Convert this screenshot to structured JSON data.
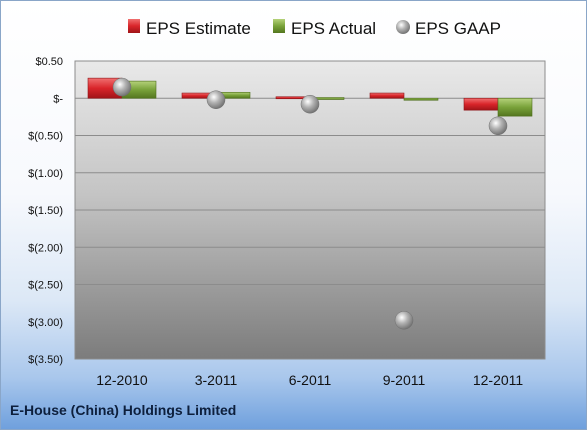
{
  "company": "E-House (China) Holdings Limited",
  "colors": {
    "estimate": "#d9252a",
    "actual": "#79a23a",
    "gaap": "#a6a6a6"
  },
  "legend": {
    "estimate": "EPS Estimate",
    "actual": "EPS Actual",
    "gaap": "EPS GAAP"
  },
  "chart_data": {
    "type": "bar",
    "categories": [
      "12-2010",
      "3-2011",
      "6-2011",
      "9-2011",
      "12-2011"
    ],
    "series": [
      {
        "name": "EPS Estimate",
        "type": "bar",
        "values": [
          0.27,
          0.07,
          0.02,
          0.07,
          -0.16
        ]
      },
      {
        "name": "EPS Actual",
        "type": "bar",
        "values": [
          0.23,
          0.08,
          0.01,
          -0.02,
          -0.24
        ]
      },
      {
        "name": "EPS GAAP",
        "type": "scatter",
        "values": [
          0.15,
          -0.02,
          -0.08,
          -2.98,
          -0.37
        ]
      }
    ],
    "ylim": [
      -3.5,
      0.5
    ],
    "yticks": [
      0.5,
      0,
      -0.5,
      -1,
      -1.5,
      -2,
      -2.5,
      -3,
      -3.5
    ],
    "ytick_labels": [
      "$0.50",
      "$-",
      "$(0.50)",
      "$(1.00)",
      "$(1.50)",
      "$(2.00)",
      "$(2.50)",
      "$(3.00)",
      "$(3.50)"
    ],
    "grid": true,
    "legend_position": "top"
  }
}
